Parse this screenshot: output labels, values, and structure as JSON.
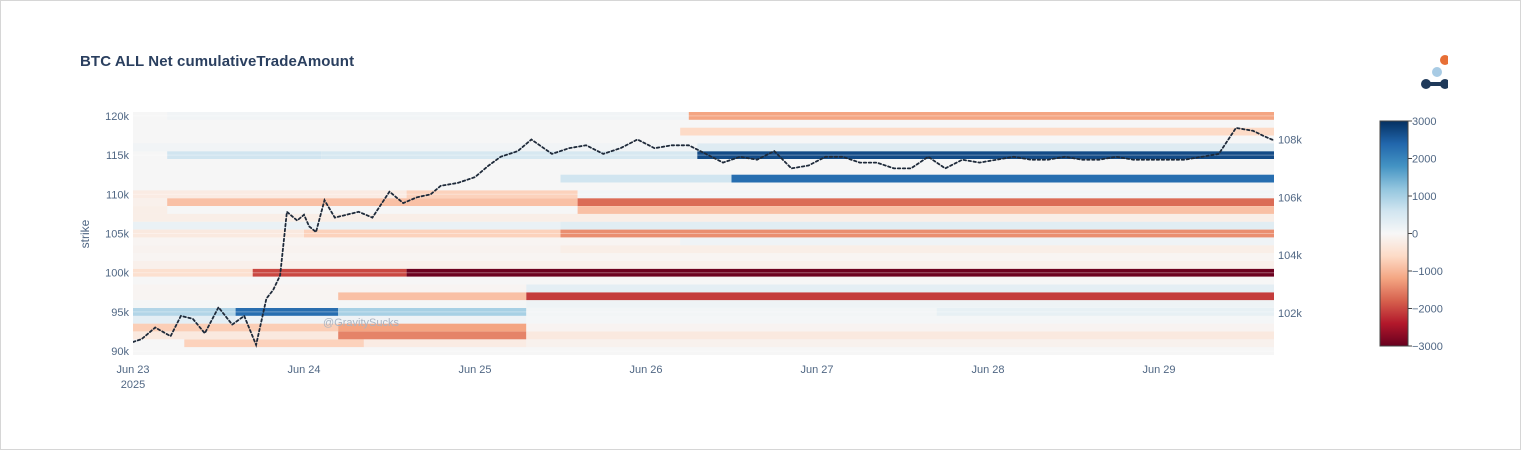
{
  "chart_data": {
    "type": "heatmap",
    "title": "BTC ALL Net cumulativeTradeAmount",
    "ylabel": "strike",
    "watermark": "@GravitySucks",
    "x_start": "2025-06-23T00:00",
    "x_end": "2025-06-29T17:30",
    "x_ticks": [
      {
        "label": "Jun 23",
        "sub": "2025"
      },
      {
        "label": "Jun 24"
      },
      {
        "label": "Jun 25"
      },
      {
        "label": "Jun 26"
      },
      {
        "label": "Jun 27"
      },
      {
        "label": "Jun 28"
      },
      {
        "label": "Jun 29"
      }
    ],
    "y_range": [
      89500,
      120500
    ],
    "y_ticks": [
      {
        "value": 90000,
        "label": "90k"
      },
      {
        "value": 95000,
        "label": "95k"
      },
      {
        "value": 100000,
        "label": "100k"
      },
      {
        "value": 105000,
        "label": "105k"
      },
      {
        "value": 110000,
        "label": "110k"
      },
      {
        "value": 115000,
        "label": "115k"
      },
      {
        "value": 120000,
        "label": "120k"
      }
    ],
    "y2_range": [
      100550,
      108950
    ],
    "y2_ticks": [
      {
        "value": 102000,
        "label": "102k"
      },
      {
        "value": 104000,
        "label": "104k"
      },
      {
        "value": 106000,
        "label": "106k"
      },
      {
        "value": 108000,
        "label": "108k"
      }
    ],
    "colorscale": {
      "name": "RdBu",
      "zmin": -3000,
      "zmax": 3000,
      "ticks": [
        {
          "value": 3000,
          "label": "3000"
        },
        {
          "value": 2000,
          "label": "2000"
        },
        {
          "value": 1000,
          "label": "1000"
        },
        {
          "value": 0,
          "label": "0"
        },
        {
          "value": -1000,
          "label": "−1000"
        },
        {
          "value": -2000,
          "label": "−2000"
        },
        {
          "value": -3000,
          "label": "−3000"
        }
      ]
    },
    "heat_rows": [
      {
        "strike": 91000,
        "segments": [
          [
            0.3,
            1.35,
            -700
          ],
          [
            1.35,
            2.3,
            -250
          ],
          [
            2.3,
            6.7,
            -120
          ]
        ]
      },
      {
        "strike": 92000,
        "segments": [
          [
            0.0,
            1.2,
            -300
          ],
          [
            1.2,
            2.3,
            -1500
          ],
          [
            2.3,
            6.7,
            -300
          ]
        ]
      },
      {
        "strike": 93000,
        "segments": [
          [
            0.0,
            1.2,
            -750
          ],
          [
            1.2,
            2.3,
            -1200
          ],
          [
            2.3,
            6.7,
            -80
          ]
        ]
      },
      {
        "strike": 94000,
        "segments": [
          [
            0.0,
            0.6,
            300
          ],
          [
            0.6,
            2.3,
            120
          ],
          [
            2.3,
            6.7,
            40
          ]
        ]
      },
      {
        "strike": 95000,
        "segments": [
          [
            0.0,
            0.6,
            900
          ],
          [
            0.6,
            1.2,
            2300
          ],
          [
            1.2,
            2.3,
            1000
          ],
          [
            2.3,
            4.7,
            80
          ],
          [
            4.7,
            6.7,
            250
          ]
        ]
      },
      {
        "strike": 96000,
        "segments": [
          [
            0.0,
            2.3,
            50
          ],
          [
            2.3,
            6.7,
            150
          ]
        ]
      },
      {
        "strike": 97000,
        "segments": [
          [
            0.0,
            1.2,
            -60
          ],
          [
            1.2,
            2.3,
            -900
          ],
          [
            2.3,
            6.7,
            -2100
          ]
        ]
      },
      {
        "strike": 98000,
        "segments": [
          [
            0.0,
            2.3,
            -60
          ],
          [
            2.3,
            6.7,
            300
          ]
        ]
      },
      {
        "strike": 100000,
        "segments": [
          [
            0.0,
            0.7,
            -500
          ],
          [
            0.7,
            1.6,
            -2000
          ],
          [
            1.6,
            6.7,
            -2950
          ]
        ]
      },
      {
        "strike": 101000,
        "segments": [
          [
            0.0,
            6.7,
            -150
          ]
        ]
      },
      {
        "strike": 102000,
        "segments": [
          [
            0.0,
            6.7,
            -60
          ]
        ]
      },
      {
        "strike": 103000,
        "segments": [
          [
            0.0,
            2.5,
            -100
          ],
          [
            2.5,
            6.7,
            -200
          ]
        ]
      },
      {
        "strike": 104000,
        "segments": [
          [
            0.0,
            3.2,
            -60
          ],
          [
            3.2,
            6.7,
            120
          ]
        ]
      },
      {
        "strike": 105000,
        "segments": [
          [
            0.0,
            1.0,
            -300
          ],
          [
            1.0,
            2.5,
            -700
          ],
          [
            2.5,
            6.7,
            -1400
          ]
        ]
      },
      {
        "strike": 106000,
        "segments": [
          [
            0.0,
            2.5,
            200
          ],
          [
            2.5,
            6.7,
            350
          ]
        ]
      },
      {
        "strike": 107000,
        "segments": [
          [
            0.0,
            6.7,
            -200
          ]
        ]
      },
      {
        "strike": 108000,
        "segments": [
          [
            0.0,
            0.2,
            -200
          ],
          [
            2.6,
            6.7,
            -900
          ]
        ]
      },
      {
        "strike": 109000,
        "segments": [
          [
            0.0,
            0.2,
            -150
          ],
          [
            0.2,
            2.6,
            -900
          ],
          [
            2.6,
            6.7,
            -1700
          ]
        ]
      },
      {
        "strike": 110000,
        "segments": [
          [
            0.0,
            1.6,
            -250
          ],
          [
            1.6,
            2.6,
            -700
          ],
          [
            2.6,
            6.7,
            80
          ]
        ]
      },
      {
        "strike": 112000,
        "segments": [
          [
            2.5,
            3.5,
            600
          ],
          [
            3.5,
            6.7,
            2300
          ]
        ]
      },
      {
        "strike": 115000,
        "segments": [
          [
            0.2,
            1.1,
            600
          ],
          [
            1.1,
            3.3,
            500
          ],
          [
            3.3,
            6.7,
            2700
          ]
        ]
      },
      {
        "strike": 116000,
        "segments": [
          [
            0.0,
            3.3,
            100
          ],
          [
            3.3,
            6.7,
            400
          ]
        ]
      },
      {
        "strike": 118000,
        "segments": [
          [
            3.2,
            6.7,
            -600
          ]
        ]
      },
      {
        "strike": 120000,
        "segments": [
          [
            0.2,
            3.25,
            100
          ],
          [
            3.25,
            6.7,
            -1200
          ]
        ]
      }
    ],
    "series": [
      {
        "type": "line",
        "style": "dotted",
        "axis": "y2",
        "x_days": [
          0.0,
          0.05,
          0.13,
          0.22,
          0.28,
          0.35,
          0.42,
          0.5,
          0.58,
          0.65,
          0.72,
          0.78,
          0.82,
          0.86,
          0.9,
          0.96,
          1.0,
          1.03,
          1.07,
          1.12,
          1.18,
          1.25,
          1.32,
          1.4,
          1.5,
          1.58,
          1.66,
          1.74,
          1.8,
          1.9,
          2.0,
          2.08,
          2.15,
          2.25,
          2.33,
          2.45,
          2.55,
          2.65,
          2.75,
          2.85,
          2.95,
          3.05,
          3.15,
          3.25,
          3.35,
          3.45,
          3.55,
          3.65,
          3.75,
          3.85,
          3.95,
          4.05,
          4.15,
          4.25,
          4.35,
          4.45,
          4.55,
          4.65,
          4.75,
          4.85,
          4.95,
          5.05,
          5.15,
          5.25,
          5.35,
          5.45,
          5.55,
          5.65,
          5.75,
          5.85,
          5.95,
          6.05,
          6.15,
          6.25,
          6.35,
          6.45,
          6.55,
          6.62,
          6.7
        ],
        "values": [
          101000,
          101100,
          101500,
          101200,
          101900,
          101800,
          101300,
          102200,
          101600,
          101900,
          100900,
          102500,
          102800,
          103300,
          105500,
          105200,
          105400,
          105000,
          104800,
          105900,
          105300,
          105400,
          105500,
          105300,
          106200,
          105800,
          106000,
          106100,
          106400,
          106500,
          106700,
          107100,
          107400,
          107600,
          108000,
          107500,
          107700,
          107800,
          107500,
          107700,
          108000,
          107700,
          107800,
          107800,
          107500,
          107200,
          107400,
          107300,
          107600,
          107000,
          107100,
          107400,
          107400,
          107200,
          107200,
          107000,
          107000,
          107400,
          107000,
          107300,
          107200,
          107300,
          107400,
          107300,
          107300,
          107400,
          107300,
          107300,
          107400,
          107300,
          107300,
          107300,
          107300,
          107400,
          107500,
          108400,
          108300,
          108100,
          107900
        ]
      }
    ]
  }
}
